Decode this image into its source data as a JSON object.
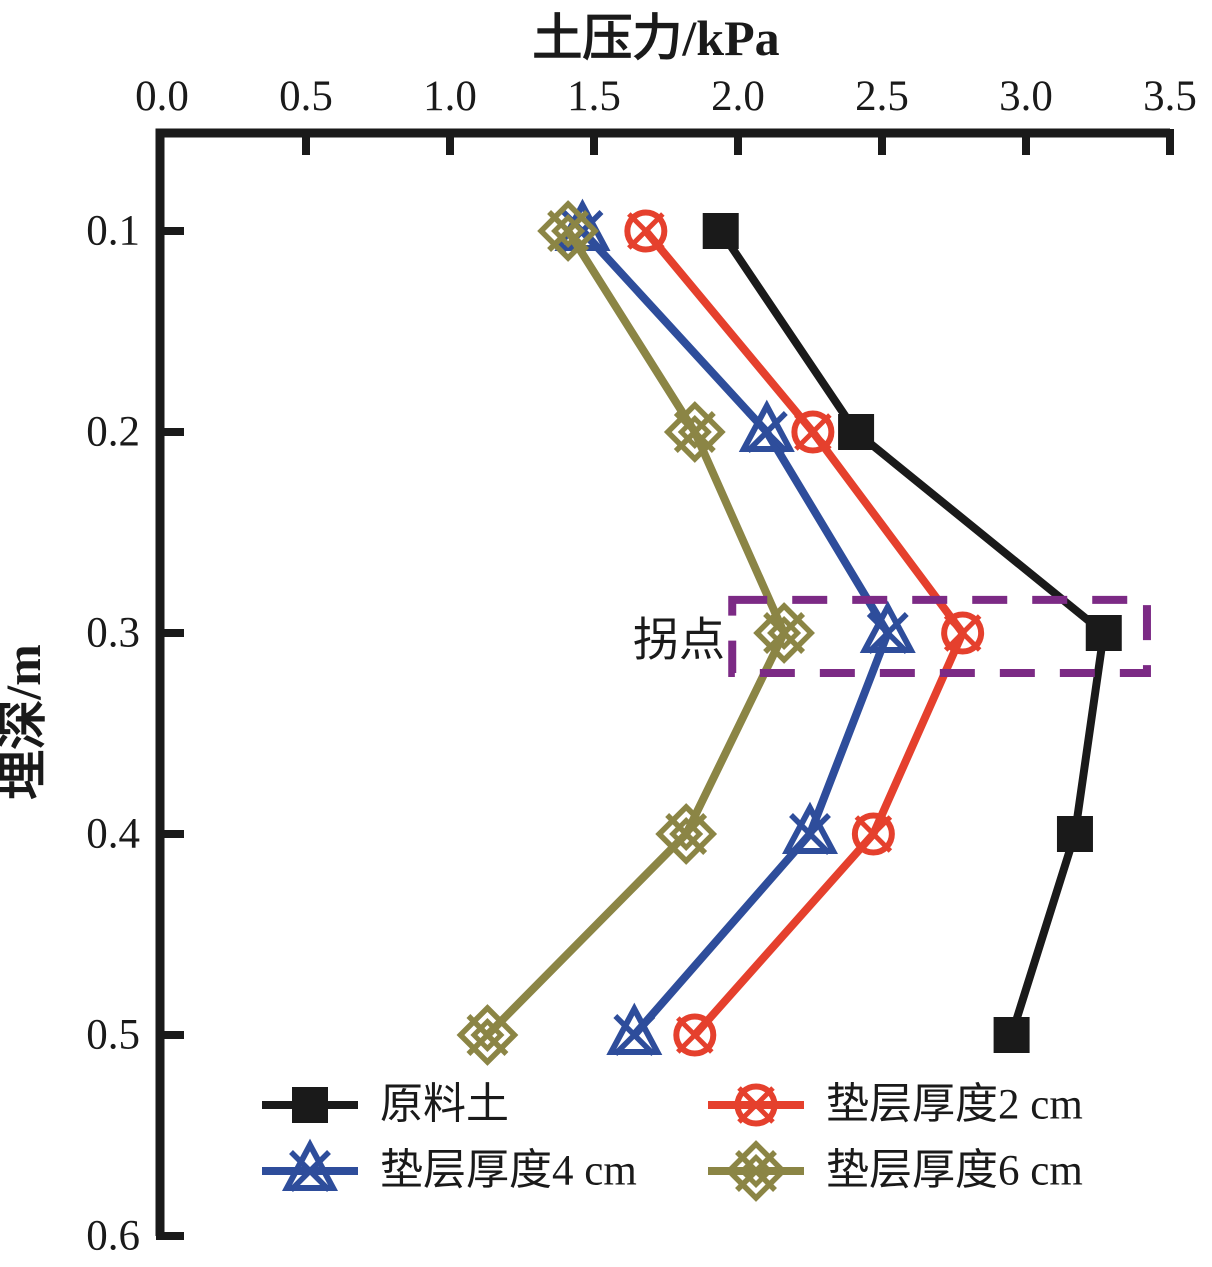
{
  "chart_data": {
    "type": "line",
    "title": "土压力/kPa",
    "xlabel": "土压力/kPa",
    "ylabel": "埋深/m",
    "x_axis_position": "top",
    "y_axis_inverted": true,
    "xlim": [
      0.0,
      3.5
    ],
    "ylim": [
      0.05,
      0.6
    ],
    "x_ticks": [
      "0.0",
      "0.5",
      "1.0",
      "1.5",
      "2.0",
      "2.5",
      "3.0",
      "3.5"
    ],
    "x_tick_values": [
      0.0,
      0.5,
      1.0,
      1.5,
      2.0,
      2.5,
      3.0,
      3.5
    ],
    "y_ticks": [
      "0.1",
      "0.2",
      "0.3",
      "0.4",
      "0.5",
      "0.6"
    ],
    "y_tick_values": [
      0.1,
      0.2,
      0.3,
      0.4,
      0.5,
      0.6
    ],
    "grid": false,
    "depths_m": [
      0.1,
      0.2,
      0.3,
      0.4,
      0.5
    ],
    "series": [
      {
        "name": "原料土",
        "color": "#1a1a1a",
        "marker": "square",
        "values": [
          1.94,
          2.41,
          3.27,
          3.17,
          2.95
        ]
      },
      {
        "name": "垫层厚度2 cm",
        "color": "#e5402d",
        "marker": "circle-x",
        "values": [
          1.68,
          2.26,
          2.78,
          2.47,
          1.85
        ]
      },
      {
        "name": "垫层厚度4 cm",
        "color": "#2e4d9b",
        "marker": "triangle-x",
        "values": [
          1.46,
          2.1,
          2.52,
          2.25,
          1.64
        ]
      },
      {
        "name": "垫层厚度6 cm",
        "color": "#8b8545",
        "marker": "diamond-lattice",
        "values": [
          1.41,
          1.85,
          2.16,
          1.82,
          1.13
        ]
      }
    ],
    "annotation": {
      "label": "拐点",
      "box_color": "#7c2a85",
      "box": {
        "x0_kpa": 1.98,
        "x1_kpa": 3.42,
        "depth0_m": 0.2835,
        "depth1_m": 0.3199
      },
      "label_anchor": {
        "x_kpa": 1.955,
        "depth_m": 0.3035
      }
    },
    "legend_position": "bottom-inside",
    "legend_order": [
      "原料土",
      "垫层厚度2 cm",
      "垫层厚度4 cm",
      "垫层厚度6 cm"
    ]
  },
  "colors": {
    "raw_soil": "#1a1a1a",
    "cushion_2cm": "#e5402d",
    "cushion_4cm": "#2e4d9b",
    "cushion_6cm": "#8b8545",
    "annotation_box": "#7c2a85",
    "axis": "#1a1a1a",
    "background": "#ffffff"
  }
}
